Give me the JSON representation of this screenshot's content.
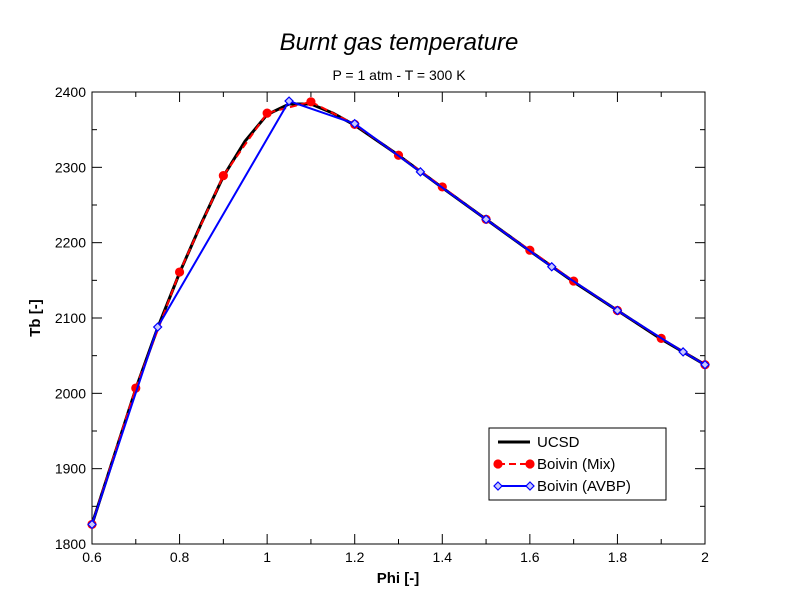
{
  "chart_data": {
    "type": "line",
    "title": "Burnt gas temperature",
    "subtitle": "P = 1 atm - T = 300 K",
    "xlabel": "Phi [-]",
    "ylabel": "Tb [-]",
    "xlim": [
      0.6,
      2.0
    ],
    "ylim": [
      1800,
      2400
    ],
    "xticks": [
      0.6,
      0.8,
      1.0,
      1.2,
      1.4,
      1.6,
      1.8,
      2.0
    ],
    "xtick_labels": [
      "0.6",
      "0.8",
      "1",
      "1.2",
      "1.4",
      "1.6",
      "1.8",
      "2"
    ],
    "yticks": [
      1800,
      1900,
      2000,
      2100,
      2200,
      2300,
      2400
    ],
    "ytick_labels": [
      "1800",
      "1900",
      "2000",
      "2100",
      "2200",
      "2300",
      "2400"
    ],
    "grid": false,
    "legend_position": "bottom-right",
    "series": [
      {
        "name": "UCSD",
        "color": "#000000",
        "style": "solid",
        "marker": "none",
        "x": [
          0.6,
          0.65,
          0.7,
          0.75,
          0.8,
          0.85,
          0.9,
          0.95,
          1.0,
          1.05,
          1.1,
          1.15,
          1.2,
          1.3,
          1.4,
          1.5,
          1.6,
          1.7,
          1.8,
          1.9,
          2.0
        ],
        "y": [
          1826,
          1916,
          2006,
          2087,
          2160,
          2226,
          2288,
          2335,
          2370,
          2384,
          2384,
          2372,
          2356,
          2316,
          2273,
          2231,
          2189,
          2148,
          2110,
          2072,
          2038
        ]
      },
      {
        "name": "Boivin (Mix)",
        "color": "#ff0000",
        "style": "dashed",
        "marker": "circle",
        "x": [
          0.6,
          0.7,
          0.8,
          0.9,
          1.0,
          1.1,
          1.2,
          1.3,
          1.4,
          1.5,
          1.6,
          1.7,
          1.8,
          1.9,
          2.0
        ],
        "y": [
          1826,
          2007,
          2161,
          2289,
          2372,
          2387,
          2357,
          2316,
          2274,
          2231,
          2190,
          2149,
          2110,
          2073,
          2038
        ]
      },
      {
        "name": "Boivin (AVBP)",
        "color": "#0000ff",
        "style": "solid",
        "marker": "diamond",
        "x": [
          0.6,
          0.75,
          1.05,
          1.2,
          1.35,
          1.5,
          1.65,
          1.8,
          1.95,
          2.0
        ],
        "y": [
          1826,
          2088,
          2388,
          2358,
          2294,
          2231,
          2168,
          2110,
          2055,
          2038
        ]
      }
    ]
  }
}
